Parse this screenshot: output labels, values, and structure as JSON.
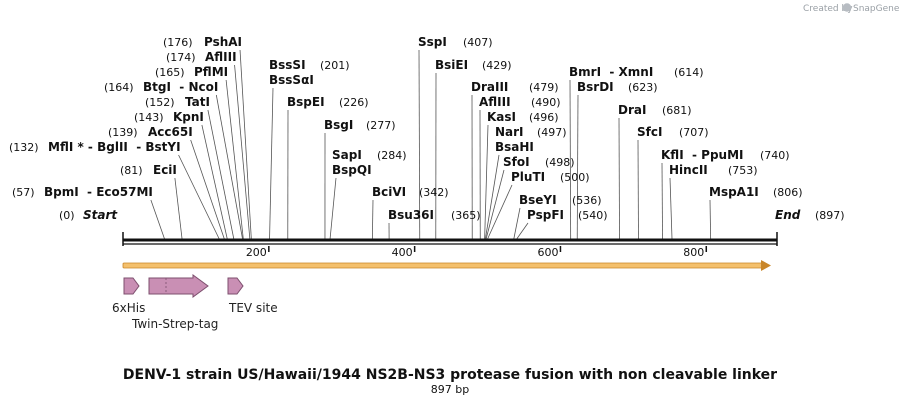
{
  "credit": {
    "prefix": "Created by",
    "brand": "SnapGene"
  },
  "title": "DENV-1 strain US/Hawaii/1944 NS2B-NS3 protease fusion with non cleavable linker",
  "subtitle": "897 bp",
  "sequence_length": 897,
  "ends": {
    "start": {
      "label": "Start",
      "pos": "(0)"
    },
    "end": {
      "label": "End",
      "pos": "(897)"
    }
  },
  "ticks": [
    {
      "bp": 200,
      "label": "200"
    },
    {
      "bp": 400,
      "label": "400"
    },
    {
      "bp": 600,
      "label": "600"
    },
    {
      "bp": 800,
      "label": "800"
    }
  ],
  "sites": [
    {
      "id": "pshai",
      "name": "PshAI",
      "pos": "(176)",
      "bp": 176
    },
    {
      "id": "afliii",
      "name": "AflIII",
      "pos": "(174)",
      "bp": 174
    },
    {
      "id": "pflmi",
      "name": "PflMI",
      "pos": "(165)",
      "bp": 165
    },
    {
      "id": "btgi-ncoi",
      "name": "BtgI  - NcoI",
      "pos": "(164)",
      "bp": 164
    },
    {
      "id": "tati",
      "name": "TatI",
      "pos": "(152)",
      "bp": 152
    },
    {
      "id": "kpni",
      "name": "KpnI",
      "pos": "(143)",
      "bp": 143
    },
    {
      "id": "acc65i",
      "name": "Acc65I",
      "pos": "(139)",
      "bp": 139
    },
    {
      "id": "mfli-bglii-bstyi",
      "name": "MflI * - BglII  - BstYI",
      "pos": "(132)",
      "bp": 132
    },
    {
      "id": "ecii",
      "name": "EciI",
      "pos": "(81)",
      "bp": 81
    },
    {
      "id": "bpmi-eco57mi",
      "name": "BpmI  - Eco57MI",
      "pos": "(57)",
      "bp": 57
    },
    {
      "id": "bsssi",
      "name": "BssSI",
      "pos": "(201)",
      "bp": 201
    },
    {
      "id": "bsssai",
      "name": "BssSαI",
      "pos": "",
      "bp": 201
    },
    {
      "id": "bspei",
      "name": "BspEI",
      "pos": "(226)",
      "bp": 226
    },
    {
      "id": "bsgi",
      "name": "BsgI",
      "pos": "(277)",
      "bp": 277
    },
    {
      "id": "sapi",
      "name": "SapI",
      "pos": "(284)",
      "bp": 284
    },
    {
      "id": "bspqi",
      "name": "BspQI",
      "pos": "",
      "bp": 284
    },
    {
      "id": "bcivi",
      "name": "BciVI",
      "pos": "(342)",
      "bp": 342
    },
    {
      "id": "bsu36i",
      "name": "Bsu36I",
      "pos": "(365)",
      "bp": 365
    },
    {
      "id": "sspi",
      "name": "SspI",
      "pos": "(407)",
      "bp": 407
    },
    {
      "id": "bsiei",
      "name": "BsiEI",
      "pos": "(429)",
      "bp": 429
    },
    {
      "id": "draiii",
      "name": "DraIII",
      "pos": "(479)",
      "bp": 479
    },
    {
      "id": "afliii2",
      "name": "AflIII",
      "pos": "(490)",
      "bp": 490
    },
    {
      "id": "kasi",
      "name": "KasI",
      "pos": "(496)",
      "bp": 496
    },
    {
      "id": "nari",
      "name": "NarI",
      "pos": "(497)",
      "bp": 497
    },
    {
      "id": "bsahi",
      "name": "BsaHI",
      "pos": "",
      "bp": 497
    },
    {
      "id": "sfoi",
      "name": "SfoI",
      "pos": "(498)",
      "bp": 498
    },
    {
      "id": "pluti",
      "name": "PluTI",
      "pos": "(500)",
      "bp": 500
    },
    {
      "id": "bseyi",
      "name": "BseYI",
      "pos": "(536)",
      "bp": 536
    },
    {
      "id": "pspfi",
      "name": "PspFI",
      "pos": "(540)",
      "bp": 540
    },
    {
      "id": "bmri-xmni",
      "name": "BmrI  - XmnI",
      "pos": "(614)",
      "bp": 614
    },
    {
      "id": "bsrdi",
      "name": "BsrDI",
      "pos": "(623)",
      "bp": 623
    },
    {
      "id": "drai",
      "name": "DraI",
      "pos": "(681)",
      "bp": 681
    },
    {
      "id": "sfci",
      "name": "SfcI",
      "pos": "(707)",
      "bp": 707
    },
    {
      "id": "kfli-ppumi",
      "name": "KflI  - PpuMI",
      "pos": "(740)",
      "bp": 740
    },
    {
      "id": "hincii",
      "name": "HincII",
      "pos": "(753)",
      "bp": 753
    },
    {
      "id": "mspa1i",
      "name": "MspA1I",
      "pos": "(806)",
      "bp": 806
    }
  ],
  "orf_arrow": {
    "color": "#f2a93b",
    "from_bp": 1,
    "to_bp": 897
  },
  "features": [
    {
      "id": "6xhis",
      "label": "6xHis",
      "color": "#c98fb4"
    },
    {
      "id": "twin-strep-tag",
      "label": "Twin-Strep-tag",
      "color": "#c98fb4"
    },
    {
      "id": "tev-site",
      "label": "TEV site",
      "color": "#c98fb4"
    }
  ]
}
